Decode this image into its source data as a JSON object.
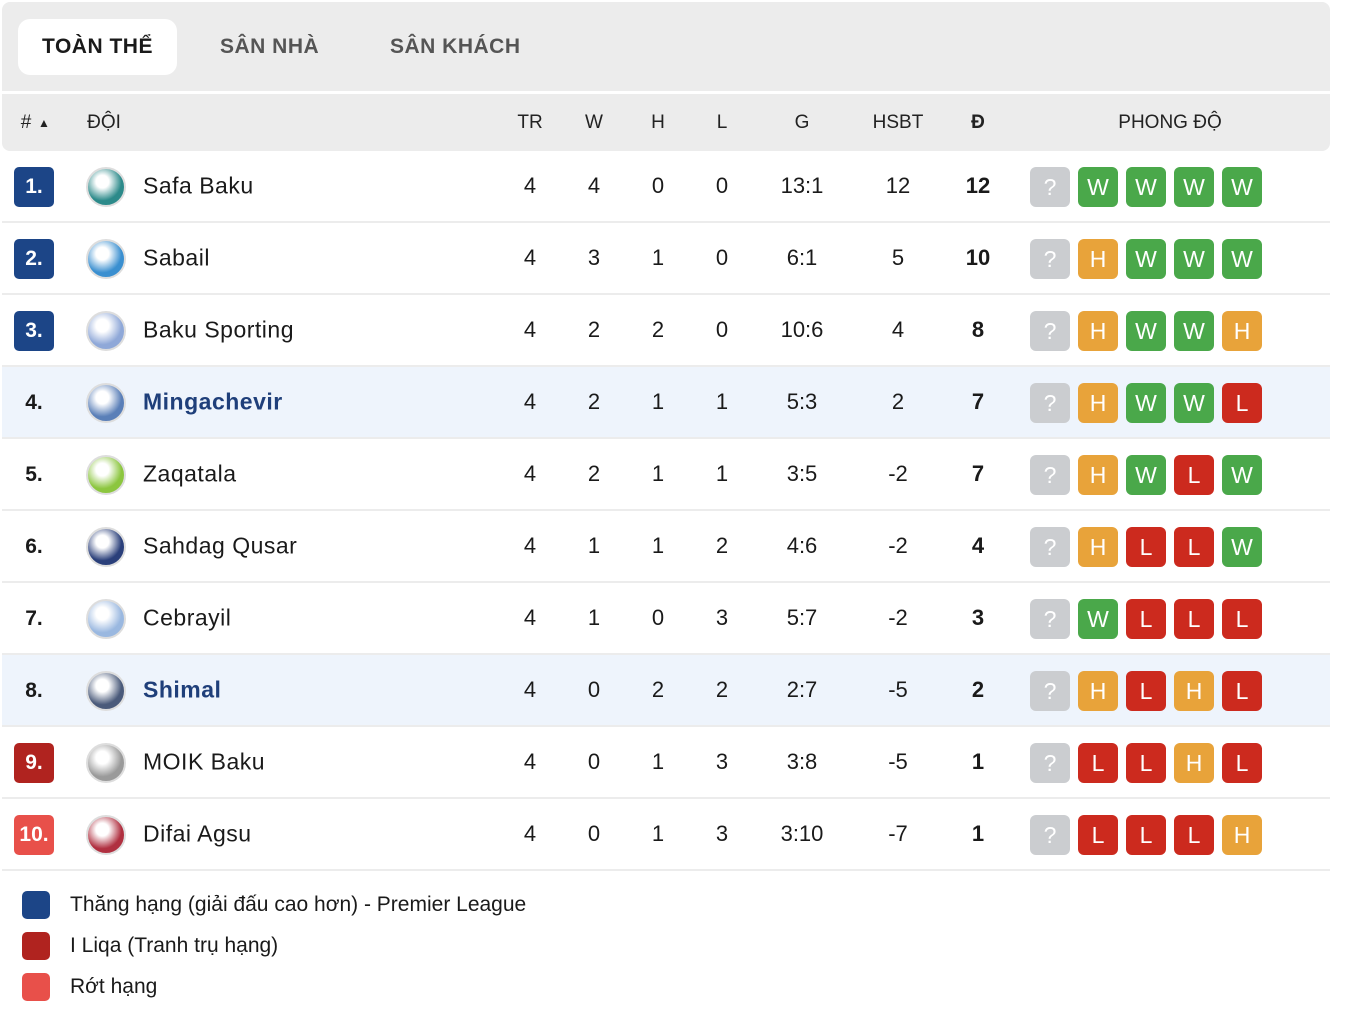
{
  "tabs": [
    "TOÀN THỂ",
    "SÂN NHÀ",
    "SÂN KHÁCH"
  ],
  "headers": {
    "rank": "#",
    "sort": "▲",
    "team": "ĐỘI",
    "tr": "TR",
    "w": "W",
    "h": "H",
    "l": "L",
    "g": "G",
    "hsbt": "HSBT",
    "pts": "Đ",
    "form": "PHONG ĐỘ"
  },
  "colors": {
    "promo": "#1c4587",
    "playoff": "#b0231f",
    "releg": "#e8504a",
    "W": "#4aa84a",
    "H": "#e8a33a",
    "L": "#cc2a1e",
    "?": "#cbcdd0"
  },
  "rows": [
    {
      "rank": "1.",
      "zone": "promo",
      "team": "Safa Baku",
      "tr": "4",
      "w": "4",
      "h": "0",
      "l": "0",
      "g": "13:1",
      "hsbt": "12",
      "pts": "12",
      "form": [
        "?",
        "W",
        "W",
        "W",
        "W"
      ],
      "logo": "#2c8a8a"
    },
    {
      "rank": "2.",
      "zone": "promo",
      "team": "Sabail",
      "tr": "4",
      "w": "3",
      "h": "1",
      "l": "0",
      "g": "6:1",
      "hsbt": "5",
      "pts": "10",
      "form": [
        "?",
        "H",
        "W",
        "W",
        "W"
      ],
      "logo": "#3a8fd0"
    },
    {
      "rank": "3.",
      "zone": "promo",
      "team": "Baku Sporting",
      "tr": "4",
      "w": "2",
      "h": "2",
      "l": "0",
      "g": "10:6",
      "hsbt": "4",
      "pts": "8",
      "form": [
        "?",
        "H",
        "W",
        "W",
        "H"
      ],
      "logo": "#8fa8d8"
    },
    {
      "rank": "4.",
      "zone": "",
      "hl": true,
      "team": "Mingachevir",
      "tr": "4",
      "w": "2",
      "h": "1",
      "l": "1",
      "g": "5:3",
      "hsbt": "2",
      "pts": "7",
      "form": [
        "?",
        "H",
        "W",
        "W",
        "L"
      ],
      "logo": "#5a7fb8"
    },
    {
      "rank": "5.",
      "zone": "",
      "team": "Zaqatala",
      "tr": "4",
      "w": "2",
      "h": "1",
      "l": "1",
      "g": "3:5",
      "hsbt": "-2",
      "pts": "7",
      "form": [
        "?",
        "H",
        "W",
        "L",
        "W"
      ],
      "logo": "#8cc63f"
    },
    {
      "rank": "6.",
      "zone": "",
      "team": "Sahdag Qusar",
      "tr": "4",
      "w": "1",
      "h": "1",
      "l": "2",
      "g": "4:6",
      "hsbt": "-2",
      "pts": "4",
      "form": [
        "?",
        "H",
        "L",
        "L",
        "W"
      ],
      "logo": "#2a3f7a"
    },
    {
      "rank": "7.",
      "zone": "",
      "team": "Cebrayil",
      "tr": "4",
      "w": "1",
      "h": "0",
      "l": "3",
      "g": "5:7",
      "hsbt": "-2",
      "pts": "3",
      "form": [
        "?",
        "W",
        "L",
        "L",
        "L"
      ],
      "logo": "#9ab8e0"
    },
    {
      "rank": "8.",
      "zone": "",
      "hl": true,
      "team": "Shimal",
      "tr": "4",
      "w": "0",
      "h": "2",
      "l": "2",
      "g": "2:7",
      "hsbt": "-5",
      "pts": "2",
      "form": [
        "?",
        "H",
        "L",
        "H",
        "L"
      ],
      "logo": "#4a5a7a"
    },
    {
      "rank": "9.",
      "zone": "playoff",
      "team": "MOIK Baku",
      "tr": "4",
      "w": "0",
      "h": "1",
      "l": "3",
      "g": "3:8",
      "hsbt": "-5",
      "pts": "1",
      "form": [
        "?",
        "L",
        "L",
        "H",
        "L"
      ],
      "logo": "#9a9a9a"
    },
    {
      "rank": "10.",
      "zone": "releg",
      "team": "Difai Agsu",
      "tr": "4",
      "w": "0",
      "h": "1",
      "l": "3",
      "g": "3:10",
      "hsbt": "-7",
      "pts": "1",
      "form": [
        "?",
        "L",
        "L",
        "L",
        "H"
      ],
      "logo": "#b03040"
    }
  ],
  "legend": [
    {
      "zone": "promo",
      "label": "Thăng hạng (giải đấu cao hơn) - Premier League"
    },
    {
      "zone": "playoff",
      "label": "I Liqa (Tranh trụ hạng)"
    },
    {
      "zone": "releg",
      "label": "Rớt hạng"
    }
  ]
}
